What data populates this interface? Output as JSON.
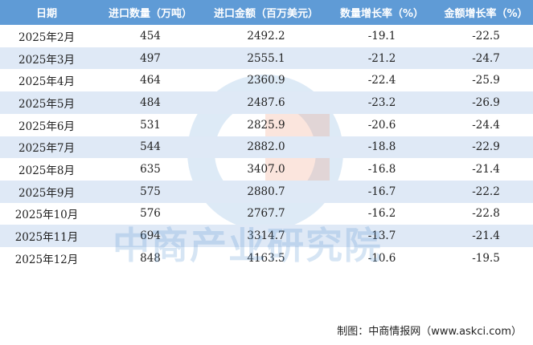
{
  "table": {
    "header": [
      "日期",
      "进口数量（万吨）",
      "进口金额（百万美元）",
      "数量增长率（%）",
      "金额增长率（%）"
    ],
    "rows": [
      [
        "2025年2月",
        "454",
        "2492.2",
        "-19.1",
        "-22.5"
      ],
      [
        "2025年3月",
        "497",
        "2555.1",
        "-21.2",
        "-24.7"
      ],
      [
        "2025年4月",
        "464",
        "2360.9",
        "-22.4",
        "-25.9"
      ],
      [
        "2025年5月",
        "484",
        "2487.6",
        "-23.2",
        "-26.9"
      ],
      [
        "2025年6月",
        "531",
        "2825.9",
        "-20.6",
        "-24.4"
      ],
      [
        "2025年7月",
        "544",
        "2882.0",
        "-18.8",
        "-22.9"
      ],
      [
        "2025年8月",
        "635",
        "3407.0",
        "-16.8",
        "-21.4"
      ],
      [
        "2025年9月",
        "575",
        "2880.7",
        "-16.7",
        "-22.2"
      ],
      [
        "2025年10月",
        "576",
        "2767.7",
        "-16.2",
        "-22.8"
      ],
      [
        "2025年11月",
        "694",
        "3314.7",
        "-13.7",
        "-21.4"
      ],
      [
        "2025年12月",
        "848",
        "4163.5",
        "-10.6",
        "-19.5"
      ]
    ]
  },
  "watermark": "中商产业研究院",
  "footer": "制图：中商情报网（www.askci.com）"
}
